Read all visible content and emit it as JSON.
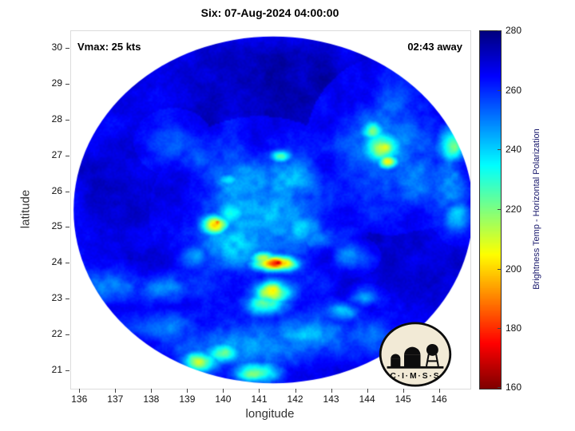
{
  "title": "Six: 07-Aug-2024 04:00:00",
  "annotations": {
    "vmax": "Vmax: 25 kts",
    "eta": "02:43 away"
  },
  "axes": {
    "xlabel": "longitude",
    "ylabel": "latitude"
  },
  "colorbar": {
    "label": "Brightness Temp - Horizontal Polarization",
    "min": 160,
    "max": 280,
    "ticks": [
      160,
      180,
      200,
      220,
      240,
      260,
      280
    ],
    "label_color": "#16166b"
  },
  "logo": {
    "text": "C·I·M·S·S",
    "bg_color": "#f2ead6",
    "ink_color": "#0d0d0d"
  },
  "chart_data": {
    "type": "heatmap",
    "title": "Six: 07-Aug-2024 04:00:00",
    "xlabel": "longitude",
    "ylabel": "latitude",
    "xlim": [
      135.75,
      146.85
    ],
    "ylim": [
      20.5,
      30.5
    ],
    "xticks": [
      136,
      137,
      138,
      139,
      140,
      141,
      142,
      143,
      144,
      145,
      146
    ],
    "yticks": [
      21,
      22,
      23,
      24,
      25,
      26,
      27,
      28,
      29,
      30
    ],
    "value_range": [
      160,
      280
    ],
    "colormap": "jet-reversed (280 K dark blue at top, 160 K dark red at bottom)",
    "grid": false,
    "legend": "vertical colorbar on right",
    "disk": {
      "center_lon": 141.37,
      "center_lat": 25.5,
      "rx_lon": 5.55,
      "ry_lat": 4.85
    },
    "background_temp_K": 266,
    "features": [
      {
        "lon": 141.45,
        "lat": 24.0,
        "rx": 0.6,
        "ry": 0.22,
        "temp": 185
      },
      {
        "lon": 141.52,
        "lat": 24.02,
        "rx": 0.2,
        "ry": 0.09,
        "temp": 166
      },
      {
        "lon": 141.1,
        "lat": 24.15,
        "rx": 0.35,
        "ry": 0.2,
        "temp": 215
      },
      {
        "lon": 141.35,
        "lat": 23.2,
        "rx": 0.5,
        "ry": 0.33,
        "temp": 203
      },
      {
        "lon": 141.2,
        "lat": 22.85,
        "rx": 0.55,
        "ry": 0.3,
        "temp": 222
      },
      {
        "lon": 139.75,
        "lat": 25.1,
        "rx": 0.38,
        "ry": 0.28,
        "temp": 200
      },
      {
        "lon": 139.82,
        "lat": 25.15,
        "rx": 0.13,
        "ry": 0.09,
        "temp": 183
      },
      {
        "lon": 140.2,
        "lat": 25.4,
        "rx": 0.5,
        "ry": 0.35,
        "temp": 232
      },
      {
        "lon": 141.0,
        "lat": 25.4,
        "rx": 1.7,
        "ry": 1.5,
        "temp": 244
      },
      {
        "lon": 140.6,
        "lat": 26.3,
        "rx": 1.0,
        "ry": 0.8,
        "temp": 240
      },
      {
        "lon": 141.8,
        "lat": 26.3,
        "rx": 0.9,
        "ry": 0.7,
        "temp": 242
      },
      {
        "lon": 140.3,
        "lat": 24.6,
        "rx": 0.9,
        "ry": 0.7,
        "temp": 241
      },
      {
        "lon": 141.6,
        "lat": 27.0,
        "rx": 0.3,
        "ry": 0.18,
        "temp": 226
      },
      {
        "lon": 140.15,
        "lat": 26.35,
        "rx": 0.3,
        "ry": 0.2,
        "temp": 230
      },
      {
        "lon": 142.2,
        "lat": 25.0,
        "rx": 0.6,
        "ry": 0.45,
        "temp": 243
      },
      {
        "lon": 142.6,
        "lat": 24.7,
        "rx": 0.45,
        "ry": 0.3,
        "temp": 246
      },
      {
        "lon": 144.4,
        "lat": 27.25,
        "rx": 0.55,
        "ry": 0.5,
        "temp": 212
      },
      {
        "lon": 144.55,
        "lat": 26.85,
        "rx": 0.3,
        "ry": 0.22,
        "temp": 200
      },
      {
        "lon": 144.15,
        "lat": 27.7,
        "rx": 0.35,
        "ry": 0.3,
        "temp": 222
      },
      {
        "lon": 144.6,
        "lat": 27.3,
        "rx": 1.3,
        "ry": 1.4,
        "temp": 246
      },
      {
        "lon": 145.3,
        "lat": 26.5,
        "rx": 0.7,
        "ry": 0.9,
        "temp": 248
      },
      {
        "lon": 146.35,
        "lat": 27.3,
        "rx": 0.4,
        "ry": 0.5,
        "temp": 224
      },
      {
        "lon": 146.3,
        "lat": 26.3,
        "rx": 0.5,
        "ry": 0.9,
        "temp": 246
      },
      {
        "lon": 146.5,
        "lat": 25.3,
        "rx": 0.35,
        "ry": 0.45,
        "temp": 238
      },
      {
        "lon": 139.35,
        "lat": 21.25,
        "rx": 0.5,
        "ry": 0.3,
        "temp": 210
      },
      {
        "lon": 139.95,
        "lat": 21.5,
        "rx": 0.55,
        "ry": 0.3,
        "temp": 224
      },
      {
        "lon": 140.9,
        "lat": 20.95,
        "rx": 0.65,
        "ry": 0.28,
        "temp": 216
      },
      {
        "lon": 140.5,
        "lat": 21.7,
        "rx": 2.2,
        "ry": 0.7,
        "temp": 247
      },
      {
        "lon": 142.3,
        "lat": 21.95,
        "rx": 1.1,
        "ry": 0.55,
        "temp": 246
      },
      {
        "lon": 138.6,
        "lat": 22.2,
        "rx": 0.9,
        "ry": 0.5,
        "temp": 250
      },
      {
        "lon": 136.9,
        "lat": 23.35,
        "rx": 1.4,
        "ry": 0.45,
        "temp": 251
      },
      {
        "lon": 138.3,
        "lat": 23.3,
        "rx": 1.0,
        "ry": 0.4,
        "temp": 250
      },
      {
        "lon": 143.3,
        "lat": 22.65,
        "rx": 0.45,
        "ry": 0.25,
        "temp": 240
      },
      {
        "lon": 143.9,
        "lat": 23.05,
        "rx": 0.4,
        "ry": 0.22,
        "temp": 242
      },
      {
        "lon": 143.5,
        "lat": 24.2,
        "rx": 0.5,
        "ry": 0.35,
        "temp": 250
      },
      {
        "lon": 144.3,
        "lat": 22.0,
        "rx": 0.8,
        "ry": 0.4,
        "temp": 252
      },
      {
        "lon": 139.2,
        "lat": 24.2,
        "rx": 0.4,
        "ry": 0.3,
        "temp": 248
      },
      {
        "lon": 138.6,
        "lat": 27.4,
        "rx": 0.7,
        "ry": 0.6,
        "temp": 257
      },
      {
        "lon": 139.2,
        "lat": 26.9,
        "rx": 0.5,
        "ry": 0.4,
        "temp": 255
      },
      {
        "lon": 142.0,
        "lat": 28.8,
        "rx": 2.2,
        "ry": 1.4,
        "temp": 275
      },
      {
        "lon": 139.6,
        "lat": 28.2,
        "rx": 1.6,
        "ry": 1.1,
        "temp": 272
      },
      {
        "lon": 144.9,
        "lat": 24.4,
        "rx": 1.6,
        "ry": 1.6,
        "temp": 271
      },
      {
        "lon": 137.3,
        "lat": 26.3,
        "rx": 1.4,
        "ry": 2.0,
        "temp": 270
      },
      {
        "lon": 143.0,
        "lat": 26.8,
        "rx": 0.8,
        "ry": 0.9,
        "temp": 268
      }
    ]
  }
}
